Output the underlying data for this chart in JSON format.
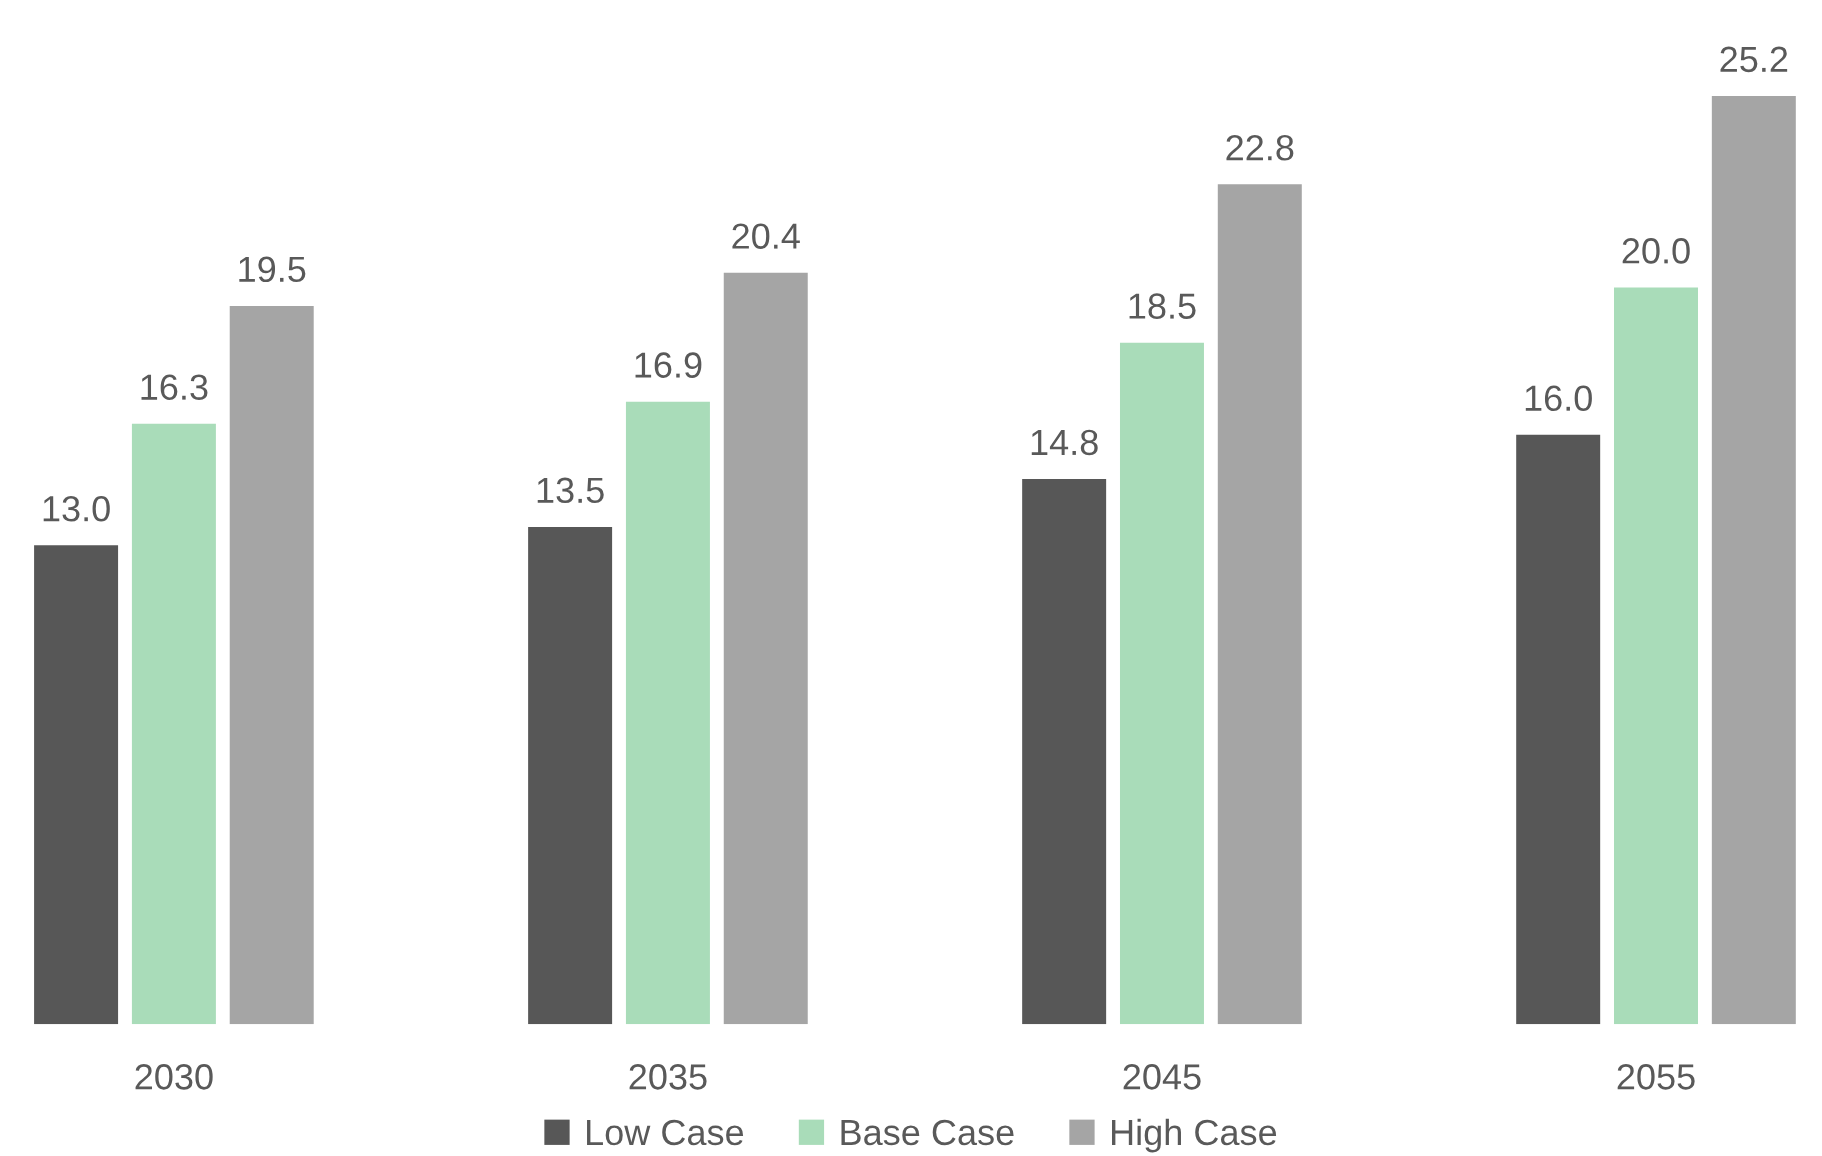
{
  "chart_data": {
    "type": "bar",
    "categories": [
      "2030",
      "2035",
      "2045",
      "2055"
    ],
    "series": [
      {
        "name": "Low Case",
        "color": "#575757",
        "values": [
          13.0,
          13.5,
          14.8,
          16.0
        ],
        "value_labels": [
          "13.0",
          "13.5",
          "14.8",
          "16.0"
        ]
      },
      {
        "name": "Base Case",
        "color": "#a9dcb9",
        "values": [
          16.3,
          16.9,
          18.5,
          20.0
        ],
        "value_labels": [
          "16.3",
          "16.9",
          "18.5",
          "20.0"
        ]
      },
      {
        "name": "High Case",
        "color": "#a5a5a5",
        "values": [
          19.5,
          20.4,
          22.8,
          25.2
        ],
        "value_labels": [
          "19.5",
          "20.4",
          "22.8",
          "25.2"
        ]
      }
    ],
    "grid": false,
    "legend": "bottom",
    "tick_labels": "x"
  }
}
